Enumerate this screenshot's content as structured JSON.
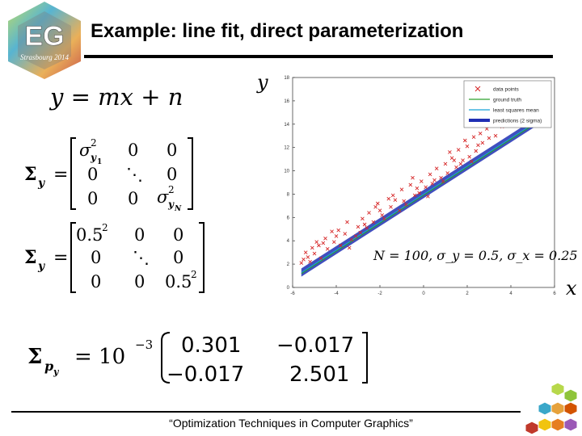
{
  "header": {
    "title": "Example: line fit, direct parameterization",
    "logo": {
      "text": "EG",
      "subtext": "Strasbourg 2014"
    }
  },
  "equations": {
    "model": "y = mx + n",
    "sigma_y_label": "Σ",
    "sigma_y_sub": "y",
    "sigma_y_general": {
      "cells": [
        [
          "σ",
          "0",
          "0"
        ],
        [
          "0",
          "⋱",
          "0"
        ],
        [
          "0",
          "0",
          "σ"
        ]
      ],
      "sub_first": "y",
      "sub_first_index": "1",
      "sub_last": "y",
      "sub_last_index": "N",
      "sup": "2"
    },
    "sigma_y_numeric": {
      "cells": [
        [
          "0.5",
          "0",
          "0"
        ],
        [
          "0",
          "⋱",
          "0"
        ],
        [
          "0",
          "0",
          "0.5"
        ]
      ],
      "sup": "2"
    },
    "sigma_p": {
      "label": "Σ",
      "sub": "p",
      "subsub": "y",
      "factor": "= 10",
      "exponent": "−3",
      "cells": [
        [
          "0.301",
          "−0.017"
        ],
        [
          "−0.017",
          "2.501"
        ]
      ]
    }
  },
  "chart_data": {
    "type": "scatter",
    "xlabel": "x",
    "ylabel": "y",
    "xlim": [
      -6,
      6
    ],
    "ylim": [
      0,
      18
    ],
    "xticks": [
      "-6",
      "-4",
      "-2",
      "0",
      "2",
      "4",
      "6"
    ],
    "yticks": [
      "0",
      "2",
      "4",
      "6",
      "8",
      "10",
      "12",
      "14",
      "16",
      "18"
    ],
    "annotation": "N = 100, σ_y = 0.5, σ_x = 0.25",
    "legend": {
      "placement": "top-right",
      "entries": [
        {
          "name": "data points",
          "color": "#d62728",
          "style": "x"
        },
        {
          "name": "ground truth",
          "color": "#2ca02c",
          "style": "line"
        },
        {
          "name": "least squares mean",
          "color": "#17a2d6",
          "style": "line"
        },
        {
          "name": "predictions (2 sigma)",
          "color": "#1f2fb4",
          "style": "band"
        }
      ]
    },
    "fit": {
      "slope": 1.2,
      "intercept": 8.0
    },
    "points": [
      [
        -5.6,
        2.1
      ],
      [
        -5.4,
        3.0
      ],
      [
        -5.3,
        2.6
      ],
      [
        -5.1,
        3.4
      ],
      [
        -5.0,
        2.9
      ],
      [
        -4.8,
        3.6
      ],
      [
        -4.7,
        2.5
      ],
      [
        -4.5,
        4.2
      ],
      [
        -4.4,
        3.3
      ],
      [
        -4.2,
        4.8
      ],
      [
        -4.1,
        3.9
      ],
      [
        -4.0,
        4.4
      ],
      [
        -3.8,
        3.6
      ],
      [
        -3.6,
        4.6
      ],
      [
        -3.5,
        5.6
      ],
      [
        -3.3,
        4.1
      ],
      [
        -3.1,
        4.4
      ],
      [
        -3.0,
        5.2
      ],
      [
        -2.8,
        5.9
      ],
      [
        -2.6,
        5.1
      ],
      [
        -2.5,
        6.4
      ],
      [
        -2.3,
        5.6
      ],
      [
        -2.1,
        7.2
      ],
      [
        -2.0,
        6.6
      ],
      [
        -1.8,
        5.9
      ],
      [
        -1.6,
        7.6
      ],
      [
        -1.5,
        6.9
      ],
      [
        -1.3,
        7.5
      ],
      [
        -1.1,
        6.6
      ],
      [
        -1.0,
        8.4
      ],
      [
        -0.8,
        7.1
      ],
      [
        -0.6,
        8.8
      ],
      [
        -0.4,
        7.9
      ],
      [
        -0.3,
        8.5
      ],
      [
        -0.1,
        9.1
      ],
      [
        0.1,
        8.6
      ],
      [
        0.3,
        9.7
      ],
      [
        0.4,
        8.9
      ],
      [
        0.6,
        10.2
      ],
      [
        0.8,
        9.4
      ],
      [
        1.0,
        10.6
      ],
      [
        1.1,
        9.8
      ],
      [
        1.3,
        11.1
      ],
      [
        1.5,
        10.3
      ],
      [
        1.6,
        11.8
      ],
      [
        1.8,
        10.9
      ],
      [
        2.0,
        12.1
      ],
      [
        2.1,
        11.2
      ],
      [
        2.3,
        12.9
      ],
      [
        2.4,
        11.7
      ],
      [
        2.6,
        13.2
      ],
      [
        2.7,
        12.4
      ],
      [
        2.9,
        13.6
      ],
      [
        3.0,
        12.8
      ],
      [
        3.2,
        14.1
      ],
      [
        3.3,
        13.0
      ],
      [
        3.5,
        14.6
      ],
      [
        3.6,
        13.8
      ],
      [
        3.8,
        15.1
      ],
      [
        3.9,
        14.2
      ],
      [
        4.1,
        15.6
      ],
      [
        4.2,
        14.9
      ],
      [
        4.4,
        16.1
      ],
      [
        4.5,
        15.3
      ],
      [
        4.7,
        16.6
      ],
      [
        4.8,
        15.8
      ],
      [
        5.0,
        17.1
      ],
      [
        5.2,
        16.2
      ],
      [
        5.4,
        17.5
      ],
      [
        -5.2,
        2.2
      ],
      [
        -4.6,
        3.8
      ],
      [
        -3.9,
        4.9
      ],
      [
        -2.9,
        4.7
      ],
      [
        -1.9,
        6.2
      ],
      [
        -0.9,
        7.4
      ],
      [
        0.2,
        7.8
      ],
      [
        1.2,
        11.6
      ],
      [
        2.2,
        10.8
      ],
      [
        3.1,
        14.5
      ],
      [
        4.0,
        15.0
      ],
      [
        -3.4,
        3.4
      ],
      [
        -2.2,
        6.9
      ],
      [
        -0.5,
        9.4
      ],
      [
        0.9,
        9.1
      ],
      [
        1.9,
        12.6
      ],
      [
        2.8,
        13.9
      ],
      [
        3.7,
        14.0
      ],
      [
        4.6,
        16.4
      ],
      [
        -4.9,
        3.9
      ],
      [
        -1.4,
        7.9
      ],
      [
        0.5,
        9.2
      ],
      [
        1.7,
        10.6
      ],
      [
        2.5,
        12.2
      ],
      [
        3.4,
        15.2
      ],
      [
        -2.7,
        5.4
      ],
      [
        -0.2,
        8.1
      ],
      [
        1.4,
        10.9
      ],
      [
        4.3,
        15.4
      ],
      [
        5.1,
        16.8
      ],
      [
        -5.5,
        2.4
      ]
    ]
  },
  "footer": {
    "text": "“Optimization Techniques in Computer Graphics”"
  }
}
